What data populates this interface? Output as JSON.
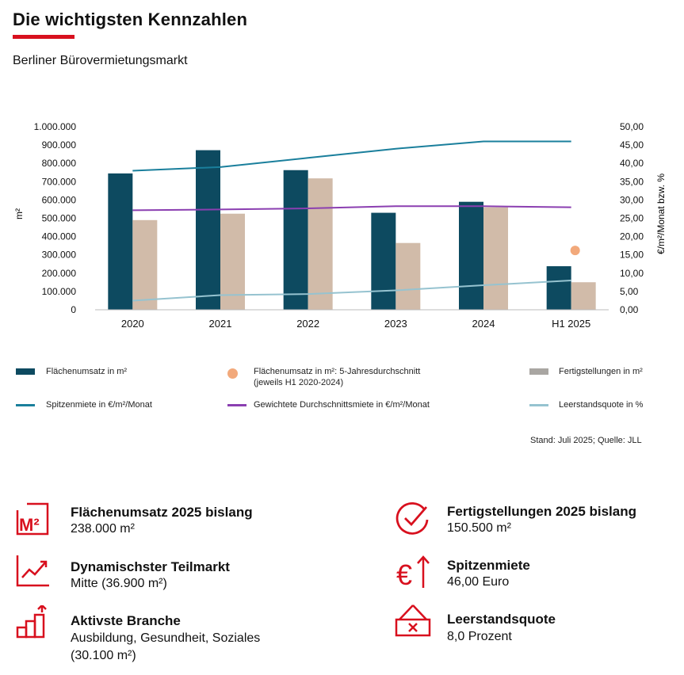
{
  "header": {
    "title": "Die wichtigsten Kennzahlen",
    "subtitle": "Berliner Bürovermietungsmarkt",
    "accent_color": "#d8101e"
  },
  "chart_data": {
    "type": "bar",
    "categories": [
      "2020",
      "2021",
      "2022",
      "2023",
      "2024",
      "H1 2025"
    ],
    "ylabel": "m²",
    "y2label": "€/m²/Monat bzw. %",
    "ylim": [
      0,
      1000000
    ],
    "y2lim": [
      0,
      50
    ],
    "y_ticks": [
      "0",
      "100.000",
      "200.000",
      "300.000",
      "400.000",
      "500.000",
      "600.000",
      "700.000",
      "800.000",
      "900.000",
      "1.000.000"
    ],
    "y2_ticks": [
      "0,00",
      "5,00",
      "10,00",
      "15,00",
      "20,00",
      "25,00",
      "30,00",
      "35,00",
      "40,00",
      "45,00",
      "50,00"
    ],
    "bars": [
      {
        "name": "Flächenumsatz in m²",
        "color": "#0d4a60",
        "values": [
          745000,
          872000,
          763000,
          530000,
          590000,
          238000
        ]
      },
      {
        "name": "Fertigstellungen in m²",
        "color": "#d1bba9",
        "values": [
          490000,
          525000,
          718000,
          365000,
          560000,
          150500
        ]
      }
    ],
    "lines": [
      {
        "name": "Spitzenmiete in €/m²/Monat",
        "color": "#1a7f9c",
        "axis": "right",
        "values": [
          38.0,
          39.0,
          41.5,
          44.0,
          46.0,
          46.0
        ]
      },
      {
        "name": "Gewichtete Durchschnittsmiete in €/m²/Monat",
        "color": "#8b3fb1",
        "axis": "right",
        "values": [
          27.2,
          27.4,
          27.7,
          28.3,
          28.3,
          28.0
        ]
      },
      {
        "name": "Leerstandsquote in %",
        "color": "#96c3d0",
        "axis": "right",
        "values": [
          2.5,
          4.0,
          4.3,
          5.3,
          6.7,
          8.0
        ]
      }
    ],
    "points": [
      {
        "name": "Flächenumsatz in m²: 5-Jahresdurchschnitt",
        "name_line2": "(jeweils H1 2020-2024)",
        "color": "#f2a97b",
        "category": "H1 2025",
        "value": 16.2,
        "axis": "right"
      }
    ],
    "grid": false,
    "legend_position": "bottom"
  },
  "source": "Stand: Juli 2025; Quelle: JLL",
  "kpis": [
    {
      "icon": "square-meter-icon",
      "title": "Flächenumsatz 2025 bislang",
      "value": "238.000 m²"
    },
    {
      "icon": "checkmark-circle-icon",
      "title": "Fertigstellungen 2025 bislang",
      "value": "150.500 m²"
    },
    {
      "icon": "trend-up-icon",
      "title": "Dynamischster Teilmarkt",
      "value": "Mitte (36.900 m²)"
    },
    {
      "icon": "euro-up-icon",
      "title": "Spitzenmiete",
      "value": "46,00 Euro"
    },
    {
      "icon": "stairs-up-icon",
      "title": "Aktivste Branche",
      "value": "Ausbildung, Gesundheit, Soziales",
      "value2": "(30.100 m²)"
    },
    {
      "icon": "vacancy-sign-icon",
      "title": "Leerstandsquote",
      "value": "8,0 Prozent"
    }
  ]
}
